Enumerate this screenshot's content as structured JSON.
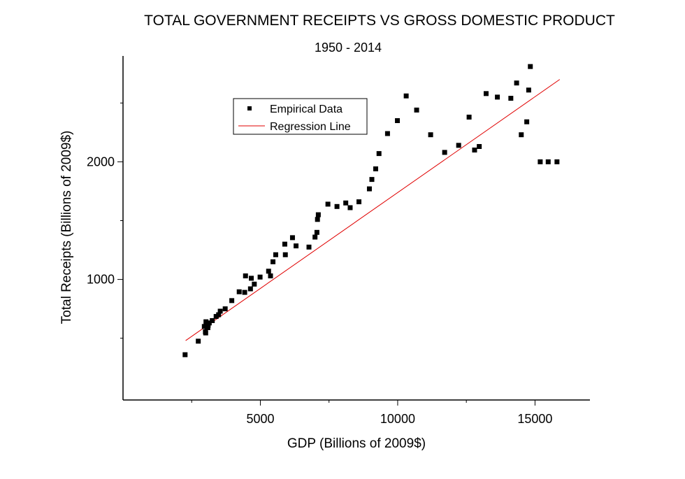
{
  "chart_data": {
    "type": "scatter",
    "title": "TOTAL GOVERNMENT RECEIPTS VS GROSS DOMESTIC PRODUCT",
    "subtitle": "1950 - 2014",
    "xlabel": "GDP (Billions of 2009$)",
    "ylabel": "Total Receipts (Billions of 2009$)",
    "xlim": [
      0,
      17000
    ],
    "ylim": [
      -25,
      2900
    ],
    "xticks": [
      5000,
      10000,
      15000
    ],
    "xticks_minor": [
      2500,
      7500,
      12500
    ],
    "yticks": [
      1000,
      2000
    ],
    "yticks_minor": [
      500,
      1500,
      2500
    ],
    "grid": false,
    "legend_position": "top-left",
    "colors": {
      "points": "#000000",
      "regression": "#e00000",
      "axis": "#000000"
    },
    "series": [
      {
        "name": "Empirical Data",
        "kind": "scatter",
        "marker": "square",
        "x": [
          2260,
          2740,
          2960,
          3000,
          3010,
          3020,
          3040,
          3060,
          3080,
          3090,
          3100,
          3140,
          3250,
          3390,
          3480,
          3540,
          3720,
          3960,
          4230,
          4430,
          4460,
          4640,
          4670,
          4780,
          4990,
          5300,
          5370,
          5460,
          5560,
          5890,
          5910,
          6170,
          6300,
          6770,
          6990,
          7060,
          7080,
          7110,
          7460,
          7790,
          8110,
          8270,
          8590,
          8970,
          9060,
          9200,
          9320,
          9630,
          9990,
          10310,
          10690,
          11200,
          11710,
          12220,
          12600,
          12800,
          12970,
          13220,
          13630,
          14120,
          14330,
          14500,
          14700,
          14770,
          14830,
          15190,
          15480,
          15800
        ],
        "y": [
          360,
          475,
          600,
          555,
          545,
          640,
          610,
          595,
          615,
          590,
          610,
          630,
          650,
          685,
          700,
          730,
          750,
          820,
          895,
          890,
          1030,
          920,
          1010,
          960,
          1020,
          1070,
          1030,
          1150,
          1210,
          1300,
          1210,
          1355,
          1285,
          1275,
          1360,
          1400,
          1510,
          1550,
          1640,
          1620,
          1650,
          1610,
          1660,
          1770,
          1850,
          1940,
          2070,
          2240,
          2350,
          2560,
          2440,
          2230,
          2080,
          2140,
          2380,
          2100,
          2130,
          2580,
          2550,
          2540,
          2670,
          2230,
          2340,
          2610,
          2810,
          2000,
          2000,
          2000
        ]
      },
      {
        "name": "Regression Line",
        "kind": "line",
        "x": [
          2280,
          15900
        ],
        "y": [
          480,
          2700
        ]
      }
    ]
  }
}
